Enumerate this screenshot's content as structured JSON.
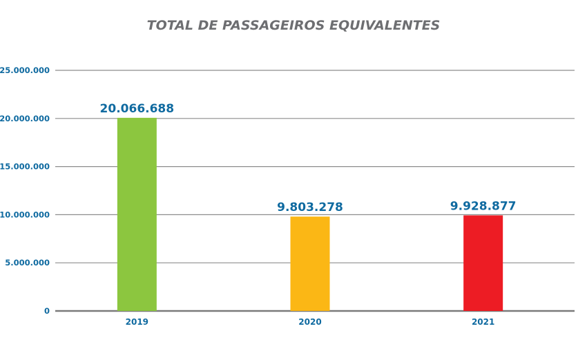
{
  "chart_data": {
    "type": "bar",
    "title": "TOTAL DE PASSAGEIROS EQUIVALENTES",
    "xlabel": "",
    "ylabel": "",
    "categories": [
      "2019",
      "2020",
      "2021"
    ],
    "values": [
      20066688,
      9803278,
      9928877
    ],
    "data_labels": [
      "20.066.688",
      "9.803.278",
      "9.928.877"
    ],
    "bar_colors": [
      "#8cc63f",
      "#fbb715",
      "#ed1c24"
    ],
    "ylim": [
      0,
      25000000
    ],
    "yticks": [
      0,
      5000000,
      10000000,
      15000000,
      20000000,
      25000000
    ],
    "ytick_labels": [
      "0",
      "5.000.000",
      "10.000.000",
      "15.000.000",
      "20.000.000",
      "25.000.000"
    ],
    "grid": true,
    "legend": "none"
  }
}
